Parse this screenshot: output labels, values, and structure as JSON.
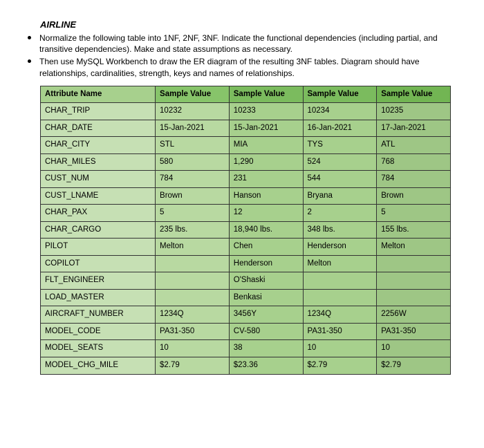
{
  "title": "AIRLINE",
  "instructions": [
    "Normalize the following table into 1NF, 2NF, 3NF. Indicate the functional dependencies (including partial, and transitive dependencies). Make and state assumptions as necessary.",
    "Then use MySQL Workbench to draw the ER diagram of the resulting 3NF tables. Diagram should have relationships, cardinalities, strength, keys and names of relationships."
  ],
  "table": {
    "header_bg_colors": [
      "#a7d08d",
      "#87c46a",
      "#7bbb5e",
      "#7bbb5e",
      "#72b553"
    ],
    "row_colors": {
      "attr_col_bg": "#c6e0b4",
      "value_bgs": [
        "#b8d9a1",
        "#a7d08d",
        "#a7d08d",
        "#9ec685"
      ]
    },
    "border_color": "#333333",
    "columns": [
      "Attribute Name",
      "Sample Value",
      "Sample Value",
      "Sample Value",
      "Sample Value"
    ],
    "rows": [
      {
        "attr": "CHAR_TRIP",
        "values": [
          "10232",
          "10233",
          "10234",
          "10235"
        ]
      },
      {
        "attr": "CHAR_DATE",
        "values": [
          "15-Jan-2021",
          "15-Jan-2021",
          "16-Jan-2021",
          "17-Jan-2021"
        ]
      },
      {
        "attr": "CHAR_CITY",
        "values": [
          "STL",
          "MIA",
          "TYS",
          "ATL"
        ]
      },
      {
        "attr": "CHAR_MILES",
        "values": [
          "580",
          "1,290",
          "524",
          "768"
        ]
      },
      {
        "attr": "CUST_NUM",
        "values": [
          "784",
          "231",
          "544",
          "784"
        ]
      },
      {
        "attr": "CUST_LNAME",
        "values": [
          "Brown",
          "Hanson",
          "Bryana",
          "Brown"
        ]
      },
      {
        "attr": "CHAR_PAX",
        "values": [
          "5",
          "12",
          "2",
          "5"
        ]
      },
      {
        "attr": "CHAR_CARGO",
        "values": [
          "235 lbs.",
          "18,940 lbs.",
          "348 lbs.",
          "155 lbs."
        ]
      },
      {
        "attr": "PILOT",
        "values": [
          "Melton",
          "Chen",
          "Henderson",
          "Melton"
        ]
      },
      {
        "attr": "COPILOT",
        "values": [
          "",
          "Henderson",
          "Melton",
          ""
        ]
      },
      {
        "attr": "FLT_ENGINEER",
        "values": [
          "",
          "O'Shaski",
          "",
          ""
        ]
      },
      {
        "attr": "LOAD_MASTER",
        "values": [
          "",
          "Benkasi",
          "",
          ""
        ]
      },
      {
        "attr": "AIRCRAFT_NUMBER",
        "values": [
          "1234Q",
          "3456Y",
          "1234Q",
          "2256W"
        ]
      },
      {
        "attr": "MODEL_CODE",
        "values": [
          "PA31-350",
          "CV-580",
          "PA31-350",
          "PA31-350"
        ]
      },
      {
        "attr": "MODEL_SEATS",
        "values": [
          "10",
          "38",
          "10",
          "10"
        ]
      },
      {
        "attr": "MODEL_CHG_MILE",
        "values": [
          "$2.79",
          "$23.36",
          "$2.79",
          "$2.79"
        ]
      }
    ]
  }
}
